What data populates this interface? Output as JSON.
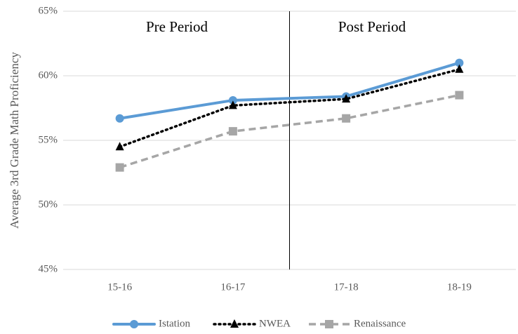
{
  "chart_data": {
    "type": "line",
    "y_label": "Average 3rd Grade Math Proficiency",
    "annotations": [
      "Pre Period",
      "Post Period"
    ],
    "categories": [
      "15-16",
      "16-17",
      "17-18",
      "18-19"
    ],
    "series": [
      {
        "name": "Istation",
        "color": "#5b9bd5",
        "dash": "solid",
        "marker": "circle",
        "values": [
          56.7,
          58.1,
          58.4,
          61.0
        ]
      },
      {
        "name": "NWEA",
        "color": "#000000",
        "dash": "dotted",
        "marker": "triangle",
        "values": [
          54.5,
          57.7,
          58.2,
          60.5
        ]
      },
      {
        "name": "Renaissance",
        "color": "#a6a6a6",
        "dash": "dashed",
        "marker": "square",
        "values": [
          52.9,
          55.7,
          56.7,
          58.5
        ]
      }
    ],
    "ylim": [
      45,
      65
    ],
    "yticks": [
      {
        "value": 45,
        "label": "45%"
      },
      {
        "value": 50,
        "label": "50%"
      },
      {
        "value": 55,
        "label": "55%"
      },
      {
        "value": 60,
        "label": "60%"
      },
      {
        "value": 65,
        "label": "65%"
      }
    ],
    "grid": true
  }
}
